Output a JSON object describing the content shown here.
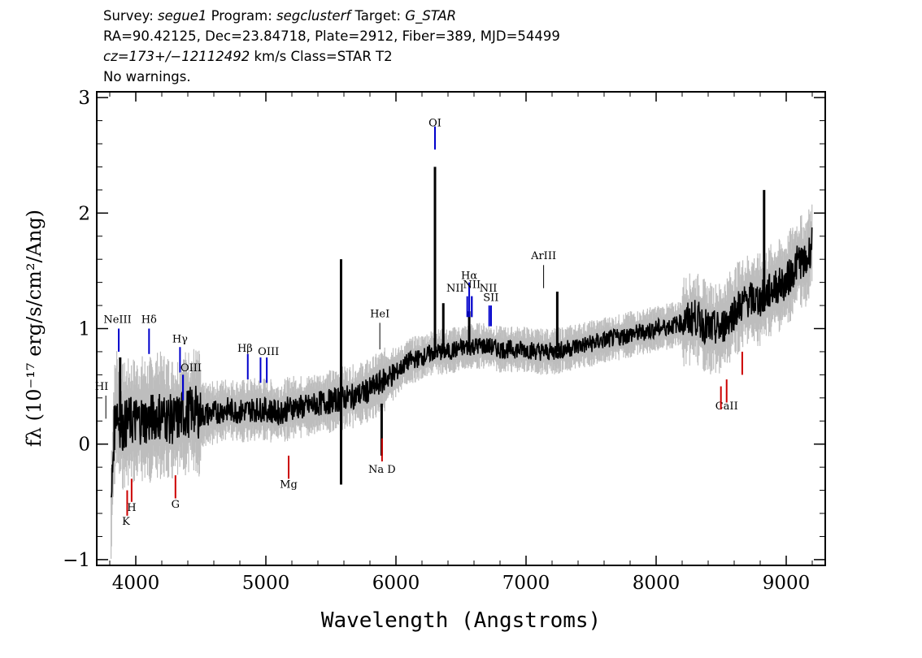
{
  "header": {
    "line1": {
      "survey_label": "Survey:",
      "survey": "segue1",
      "program_label": "Program:",
      "program": "segclusterf",
      "target_label": "Target:",
      "target": "G_STAR"
    },
    "line2": "RA=90.42125, Dec=23.84718, Plate=2912, Fiber=389, MJD=54499",
    "line3": {
      "cz": "cz=173+/−12112492",
      "rest": " km/s Class=STAR T2"
    },
    "line4": "No warnings."
  },
  "chart_data": {
    "type": "line",
    "xlabel": "Wavelength (Angstroms)",
    "ylabel": "fλ (10⁻¹⁷ erg/s/cm²/Ang)",
    "xlim": [
      3700,
      9300
    ],
    "ylim": [
      -1.05,
      3.05
    ],
    "xticks": [
      "4000",
      "5000",
      "6000",
      "7000",
      "8000",
      "9000"
    ],
    "yticks": [
      "−1",
      "0",
      "1",
      "2",
      "3"
    ],
    "colors": {
      "flux": "#000000",
      "error": "#bdbdbd",
      "emission": "#0000cc",
      "absorption": "#cc0000",
      "other": "#000000"
    },
    "series": [
      {
        "x": [
          3810,
          3830,
          3850,
          3870,
          3900,
          3950,
          4000,
          4050,
          4100,
          4150,
          4200,
          4250,
          4300,
          4350,
          4400,
          4450,
          4500,
          4600,
          4700,
          4800,
          4900,
          5000,
          5100,
          5200,
          5300,
          5400,
          5500,
          5600,
          5700,
          5800,
          5900,
          6000,
          6100,
          6200,
          6300,
          6400,
          6500,
          6600,
          6700,
          6800,
          6900,
          7000,
          7100,
          7200,
          7300,
          7400,
          7500,
          7600,
          7700,
          7800,
          7900,
          8000,
          8100,
          8200,
          8300,
          8400,
          8500,
          8600,
          8700,
          8800,
          8900,
          9000,
          9100,
          9150,
          9200
        ],
        "values": [
          -0.6,
          0.05,
          0.35,
          0.2,
          0.15,
          0.2,
          0.2,
          0.22,
          0.2,
          0.25,
          0.25,
          0.22,
          0.2,
          0.25,
          0.27,
          0.3,
          0.25,
          0.27,
          0.3,
          0.28,
          0.3,
          0.3,
          0.27,
          0.32,
          0.32,
          0.35,
          0.37,
          0.4,
          0.42,
          0.47,
          0.55,
          0.62,
          0.72,
          0.75,
          0.8,
          0.8,
          0.83,
          0.85,
          0.85,
          0.82,
          0.82,
          0.82,
          0.8,
          0.8,
          0.82,
          0.85,
          0.87,
          0.9,
          0.92,
          0.95,
          0.97,
          1.0,
          1.02,
          1.05,
          1.1,
          1.0,
          1.0,
          1.15,
          1.25,
          1.25,
          1.35,
          1.4,
          1.6,
          1.55,
          1.75
        ]
      }
    ],
    "spikes": [
      {
        "x": 5578,
        "y0": -0.35,
        "y1": 1.6
      },
      {
        "x": 6300,
        "y0": 0.75,
        "y1": 2.4
      },
      {
        "x": 6364,
        "y0": 0.8,
        "y1": 1.22
      },
      {
        "x": 6563,
        "y0": 0.85,
        "y1": 1.15
      },
      {
        "x": 7240,
        "y0": 0.8,
        "y1": 1.32
      },
      {
        "x": 8830,
        "y0": 1.15,
        "y1": 2.2
      },
      {
        "x": 3880,
        "y0": 0.2,
        "y1": 0.75
      },
      {
        "x": 5890,
        "y0": -0.1,
        "y1": 0.35
      }
    ],
    "line_labels": [
      {
        "text": "OI",
        "x": 6300,
        "tx": 6300,
        "ly": 2.75,
        "ty0": 2.75,
        "ty1": 2.55,
        "kind": "emission"
      },
      {
        "text": "ArIII",
        "x": 7135,
        "tx": 7135,
        "ly": 1.6,
        "ty0": 1.55,
        "ty1": 1.35,
        "kind": "other"
      },
      {
        "text": "Hα",
        "x": 6563,
        "tx": 6563,
        "ly": 1.43,
        "ty0": 1.4,
        "ty1": 1.1,
        "kind": "emission"
      },
      {
        "text": "NII",
        "x": 6548,
        "tx": 6455,
        "ly": 1.32,
        "ty0": 1.28,
        "ty1": 1.1,
        "kind": "emission"
      },
      {
        "text": "NII",
        "x": 6583,
        "tx": 6583,
        "ly": 1.35,
        "ty0": 1.28,
        "ty1": 1.1,
        "kind": "emission"
      },
      {
        "text": "NII",
        "x": 6583,
        "tx": 6710,
        "ly": 1.32,
        "ty0": 1.28,
        "ty1": 1.1,
        "kind": "emission"
      },
      {
        "text": "SII",
        "x": 6717,
        "tx": 6730,
        "ly": 1.24,
        "ty0": 1.2,
        "ty1": 1.02,
        "kind": "emission"
      },
      {
        "text": "HeI",
        "x": 5876,
        "tx": 5876,
        "ly": 1.1,
        "ty0": 1.05,
        "ty1": 0.82,
        "kind": "other"
      },
      {
        "text": "NeIII",
        "x": 3869,
        "tx": 3860,
        "ly": 1.05,
        "ty0": 1.0,
        "ty1": 0.8,
        "kind": "emission"
      },
      {
        "text": "Hδ",
        "x": 4102,
        "tx": 4102,
        "ly": 1.05,
        "ty0": 1.0,
        "ty1": 0.78,
        "kind": "emission"
      },
      {
        "text": "Hγ",
        "x": 4340,
        "tx": 4340,
        "ly": 0.88,
        "ty0": 0.84,
        "ty1": 0.62,
        "kind": "emission"
      },
      {
        "text": "OIII",
        "x": 4363,
        "tx": 4425,
        "ly": 0.63,
        "ty0": 0.6,
        "ty1": 0.38,
        "kind": "emission"
      },
      {
        "text": "Hβ",
        "x": 4861,
        "tx": 4840,
        "ly": 0.8,
        "ty0": 0.78,
        "ty1": 0.56,
        "kind": "emission"
      },
      {
        "text": "OIII",
        "x": 4959,
        "tx": 5020,
        "ly": 0.77,
        "ty0": 0.75,
        "ty1": 0.53,
        "kind": "emission"
      },
      {
        "text": "HI",
        "x": 3770,
        "tx": 3738,
        "ly": 0.47,
        "ty0": 0.42,
        "ty1": 0.22,
        "kind": "other"
      },
      {
        "text": "CaII",
        "x": 8542,
        "tx": 8542,
        "ly": 0.3,
        "ty0": 0.36,
        "ty1": 0.56,
        "kind": "absorption"
      },
      {
        "text": "Na D",
        "x": 5893,
        "tx": 5893,
        "ly": -0.25,
        "ty0": -0.15,
        "ty1": 0.05,
        "kind": "absorption"
      },
      {
        "text": "Mg",
        "x": 5175,
        "tx": 5175,
        "ly": -0.38,
        "ty0": -0.3,
        "ty1": -0.1,
        "kind": "absorption"
      },
      {
        "text": "G",
        "x": 4305,
        "tx": 4305,
        "ly": -0.55,
        "ty0": -0.47,
        "ty1": -0.27,
        "kind": "absorption"
      },
      {
        "text": "H",
        "x": 3968,
        "tx": 3968,
        "ly": -0.58,
        "ty0": -0.5,
        "ty1": -0.3,
        "kind": "absorption"
      },
      {
        "text": "K",
        "x": 3934,
        "tx": 3925,
        "ly": -0.7,
        "ty0": -0.62,
        "ty1": -0.4,
        "kind": "absorption"
      }
    ],
    "extra_ticks": [
      {
        "x": 8498,
        "y0": 0.3,
        "y1": 0.5,
        "kind": "absorption"
      },
      {
        "x": 8662,
        "y0": 0.6,
        "y1": 0.8,
        "kind": "absorption"
      },
      {
        "x": 6731,
        "y0": 1.02,
        "y1": 1.2,
        "kind": "emission"
      },
      {
        "x": 5007,
        "y0": 0.53,
        "y1": 0.75,
        "kind": "emission"
      },
      {
        "x": 4363,
        "y0": 0.38,
        "y1": 0.6,
        "kind": "emission"
      }
    ]
  }
}
